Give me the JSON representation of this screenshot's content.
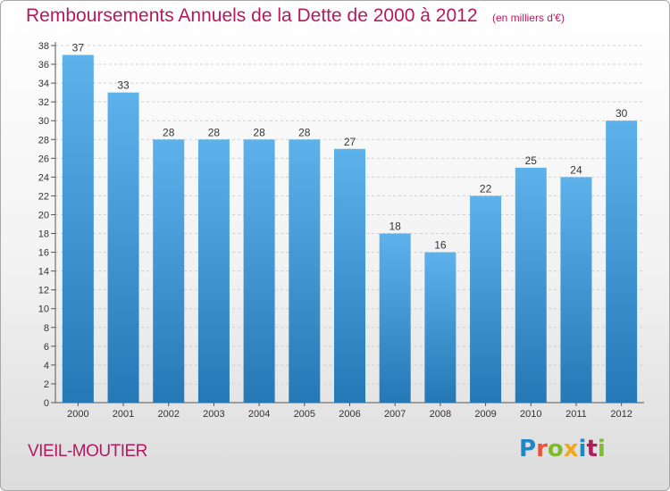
{
  "header": {
    "title": "Remboursements Annuels de la Dette de 2000 à 2012",
    "unit": "(en milliers d'€)"
  },
  "footer": {
    "commune": "VIEIL-MOUTIER",
    "logo_text": "Proxiti"
  },
  "colors": {
    "title": "#b5195f",
    "bar_top": "#5eb2ec",
    "bar_bottom": "#2478b5"
  },
  "chart_data": {
    "type": "bar",
    "categories": [
      "2000",
      "2001",
      "2002",
      "2003",
      "2004",
      "2005",
      "2006",
      "2007",
      "2008",
      "2009",
      "2010",
      "2011",
      "2012"
    ],
    "values": [
      37,
      33,
      28,
      28,
      28,
      28,
      27,
      18,
      16,
      22,
      25,
      24,
      30
    ],
    "yticks": [
      0,
      2,
      4,
      6,
      8,
      10,
      12,
      14,
      16,
      18,
      20,
      22,
      24,
      26,
      28,
      30,
      32,
      34,
      36,
      38
    ],
    "ylim": [
      0,
      38
    ],
    "grid": "horizontal dashed",
    "legend": "none"
  }
}
